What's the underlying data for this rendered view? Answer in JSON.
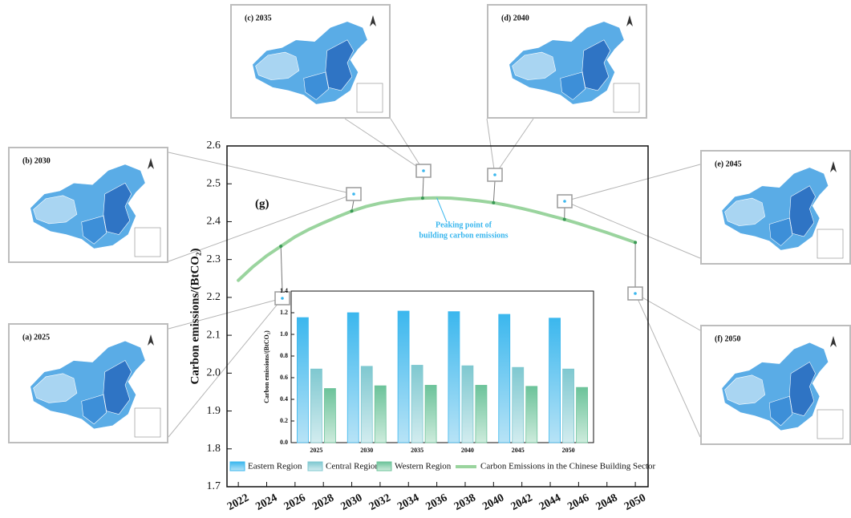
{
  "chart_data": [
    {
      "type": "line",
      "ylabel": "Carbon emissions/(BtCO₂)",
      "annotation": "(g)",
      "peak_note": [
        "Peaking point of",
        "building carbon emissions"
      ],
      "x": [
        2022,
        2023,
        2024,
        2025,
        2026,
        2027,
        2028,
        2029,
        2030,
        2031,
        2032,
        2033,
        2034,
        2035,
        2036,
        2037,
        2038,
        2039,
        2040,
        2041,
        2042,
        2043,
        2044,
        2045,
        2046,
        2047,
        2048,
        2049,
        2050
      ],
      "series": [
        {
          "name": "Carbon Emissions in the Chinese Building Sector",
          "color": "#9ad49e",
          "values": [
            2.245,
            2.28,
            2.31,
            2.335,
            2.36,
            2.38,
            2.397,
            2.413,
            2.428,
            2.44,
            2.449,
            2.455,
            2.46,
            2.462,
            2.463,
            2.462,
            2.459,
            2.455,
            2.45,
            2.443,
            2.435,
            2.426,
            2.416,
            2.406,
            2.395,
            2.383,
            2.371,
            2.358,
            2.345
          ]
        }
      ],
      "xlim": [
        2021.2,
        2050.9
      ],
      "xticks": [
        2022,
        2024,
        2026,
        2028,
        2030,
        2032,
        2034,
        2036,
        2038,
        2040,
        2042,
        2044,
        2046,
        2048,
        2050
      ],
      "ylim": [
        1.7,
        2.6
      ],
      "yticks": [
        1.7,
        1.8,
        1.9,
        {
          "value": 2,
          "label": "2.0"
        },
        2.1,
        2.2,
        2.3,
        2.4,
        2.5,
        2.6
      ]
    },
    {
      "type": "bar",
      "ylabel": "Carbon emissions/(BtCO₂)",
      "categories": [
        "2025",
        "2030",
        "2035",
        "2040",
        "2045",
        "2050"
      ],
      "series": [
        {
          "name": "Eastern Region",
          "color": "#3bb7ee",
          "values": [
            1.155,
            1.2,
            1.215,
            1.21,
            1.185,
            1.15
          ]
        },
        {
          "name": "Central Region",
          "color": "#7fc8d0",
          "values": [
            0.68,
            0.705,
            0.715,
            0.71,
            0.695,
            0.68
          ]
        },
        {
          "name": "Western Region",
          "color": "#6cc39a",
          "values": [
            0.5,
            0.525,
            0.53,
            0.53,
            0.52,
            0.51
          ]
        }
      ],
      "ylim": [
        0,
        1.4
      ],
      "yticks": [
        {
          "value": 0,
          "label": "0.0"
        },
        0.2,
        0.4,
        0.6,
        0.8,
        {
          "value": 1,
          "label": "1.0"
        },
        1.2,
        1.4
      ]
    }
  ],
  "map_panels": [
    {
      "label": "(a) 2025"
    },
    {
      "label": "(b) 2030"
    },
    {
      "label": "(c) 2035"
    },
    {
      "label": "(d) 2040"
    },
    {
      "label": "(e) 2045"
    },
    {
      "label": "(f) 2050"
    }
  ]
}
